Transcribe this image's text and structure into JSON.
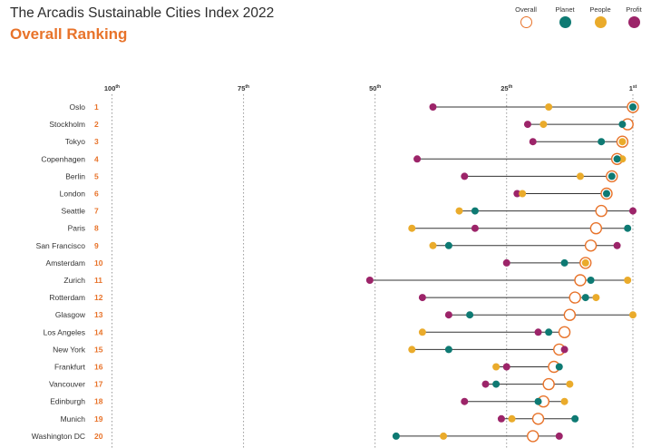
{
  "header": {
    "title": "The Arcadis Sustainable Cities Index 2022",
    "subtitle": "Overall Ranking"
  },
  "colors": {
    "overall": "#e8732a",
    "planet": "#0e7a73",
    "people": "#eaab2b",
    "profit": "#9c2469",
    "rank": "#e8732a",
    "line": "#333333",
    "gridline": "#9a9a9a",
    "text": "#333333"
  },
  "legend": [
    {
      "key": "overall",
      "label": "Overall"
    },
    {
      "key": "planet",
      "label": "Planet"
    },
    {
      "key": "people",
      "label": "People"
    },
    {
      "key": "profit",
      "label": "Profit"
    }
  ],
  "chart_data": {
    "type": "dot-range",
    "title": "Overall Ranking",
    "axis": {
      "min_rank": 1,
      "max_rank": 100,
      "direction": "best rank on the right",
      "ticks": [
        {
          "value": 100,
          "label": "100",
          "suffix": "th"
        },
        {
          "value": 75,
          "label": "75",
          "suffix": "th"
        },
        {
          "value": 50,
          "label": "50",
          "suffix": "th"
        },
        {
          "value": 25,
          "label": "25",
          "suffix": "th"
        },
        {
          "value": 1,
          "label": "1",
          "suffix": "st"
        }
      ],
      "grid": "dotted vertical lines"
    },
    "series": [
      "overall",
      "planet",
      "people",
      "profit"
    ],
    "cities": [
      {
        "name": "Oslo",
        "rank": "1",
        "overall": 1,
        "planet": 1,
        "people": 17,
        "profit": 39
      },
      {
        "name": "Stockholm",
        "rank": "2",
        "overall": 2,
        "planet": 3,
        "people": 18,
        "profit": 21
      },
      {
        "name": "Tokyo",
        "rank": "3",
        "overall": 3,
        "planet": 7,
        "people": 3,
        "profit": 20
      },
      {
        "name": "Copenhagen",
        "rank": "4",
        "overall": 4,
        "planet": 4,
        "people": 3,
        "profit": 42
      },
      {
        "name": "Berlin",
        "rank": "5",
        "overall": 5,
        "planet": 5,
        "people": 11,
        "profit": 33
      },
      {
        "name": "London",
        "rank": "6",
        "overall": 6,
        "planet": 6,
        "people": 22,
        "profit": 23
      },
      {
        "name": "Seattle",
        "rank": "7",
        "overall": 7,
        "planet": 31,
        "people": 34,
        "profit": 1
      },
      {
        "name": "Paris",
        "rank": "8",
        "overall": 8,
        "planet": 2,
        "people": 43,
        "profit": 31
      },
      {
        "name": "San Francisco",
        "rank": "9",
        "overall": 9,
        "planet": 36,
        "people": 39,
        "profit": 4
      },
      {
        "name": "Amsterdam",
        "rank": "10",
        "overall": 10,
        "planet": 14,
        "people": 10,
        "profit": 25
      },
      {
        "name": "Zurich",
        "rank": "11",
        "overall": 11,
        "planet": 9,
        "people": 2,
        "profit": 51
      },
      {
        "name": "Rotterdam",
        "rank": "12",
        "overall": 12,
        "planet": 10,
        "people": 8,
        "profit": 41
      },
      {
        "name": "Glasgow",
        "rank": "13",
        "overall": 13,
        "planet": 32,
        "people": 1,
        "profit": 36
      },
      {
        "name": "Los Angeles",
        "rank": "14",
        "overall": 14,
        "planet": 17,
        "people": 41,
        "profit": 19
      },
      {
        "name": "New York",
        "rank": "15",
        "overall": 15,
        "planet": 36,
        "people": 43,
        "profit": 14
      },
      {
        "name": "Frankfurt",
        "rank": "16",
        "overall": 16,
        "planet": 15,
        "people": 27,
        "profit": 25
      },
      {
        "name": "Vancouver",
        "rank": "17",
        "overall": 17,
        "planet": 27,
        "people": 13,
        "profit": 29
      },
      {
        "name": "Edinburgh",
        "rank": "18",
        "overall": 18,
        "planet": 19,
        "people": 14,
        "profit": 33
      },
      {
        "name": "Munich",
        "rank": "19",
        "overall": 19,
        "planet": 12,
        "people": 24,
        "profit": 26
      },
      {
        "name": "Washington DC",
        "rank": "20",
        "overall": 20,
        "planet": 46,
        "people": 37,
        "profit": 15
      }
    ]
  }
}
